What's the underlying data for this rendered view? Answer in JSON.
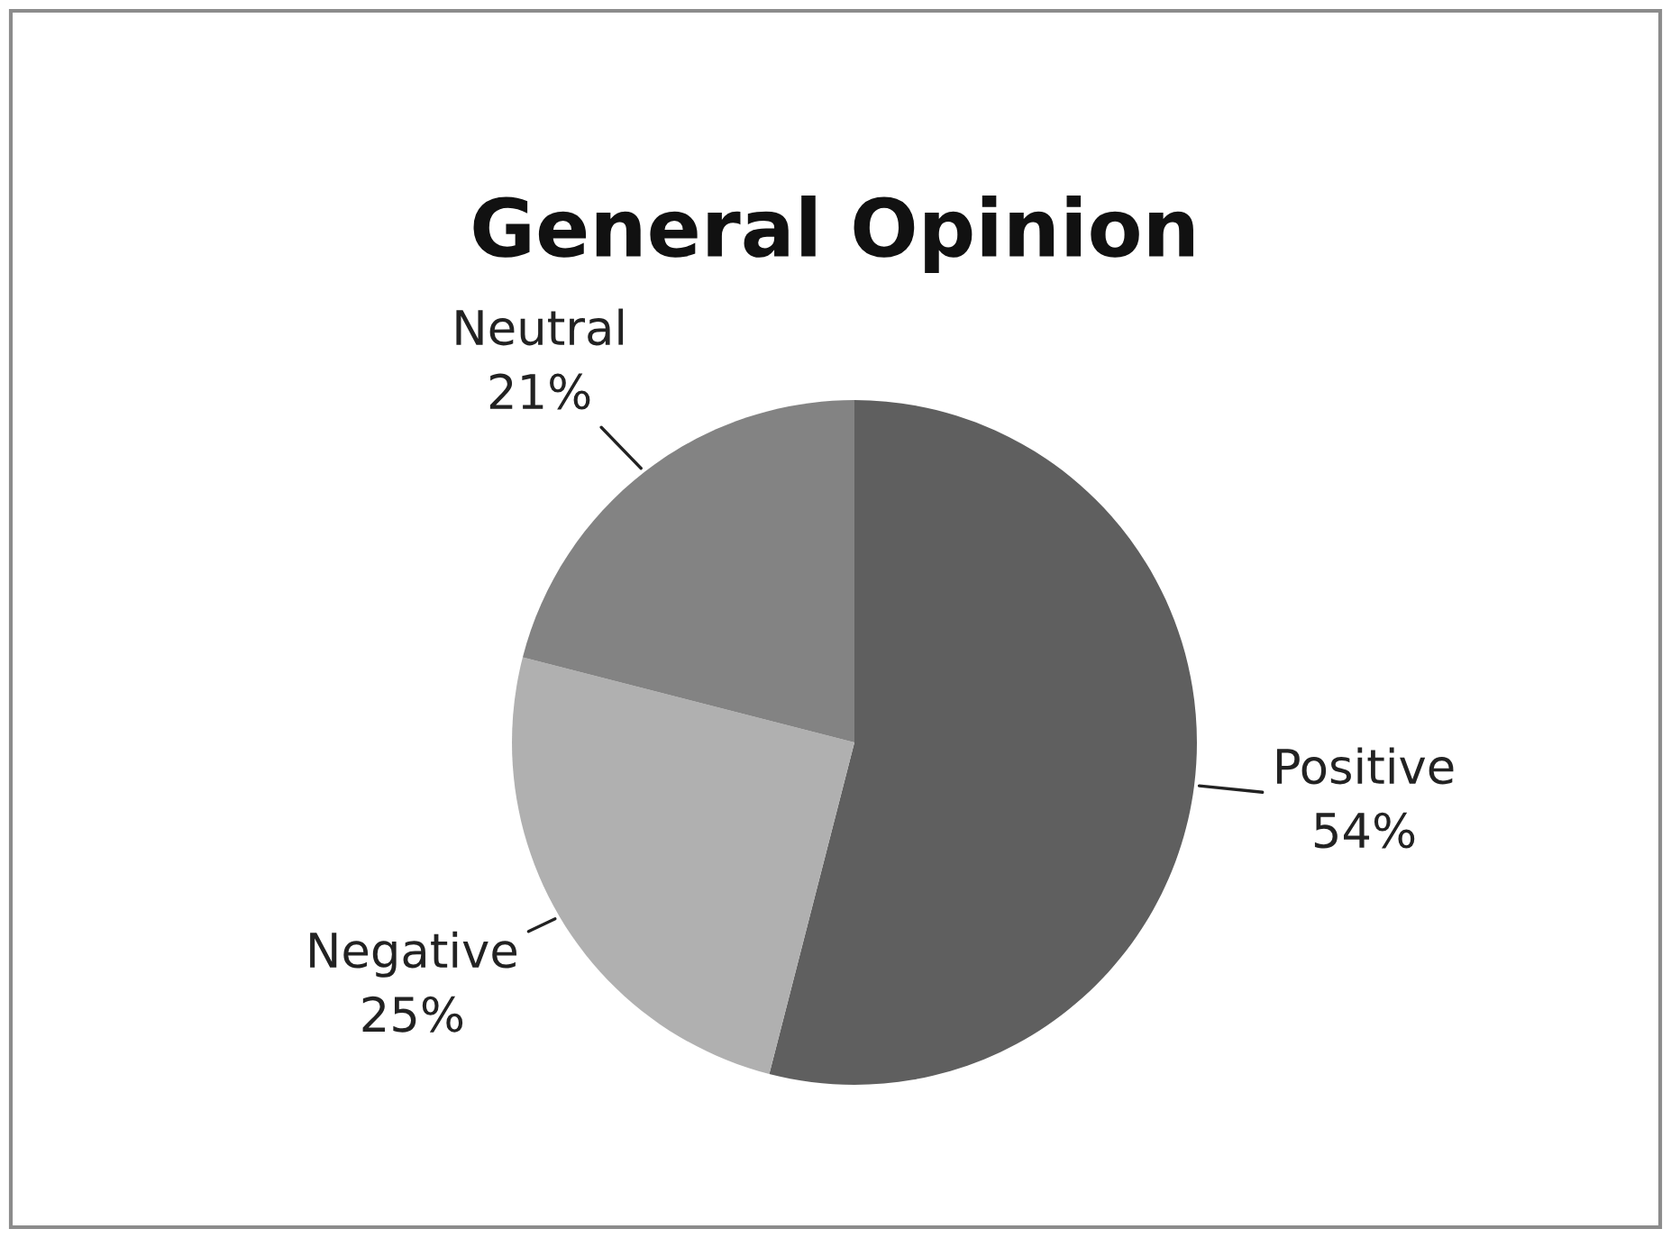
{
  "chart_data": {
    "type": "pie",
    "title": "General Opinion",
    "categories": [
      "Positive",
      "Negative",
      "Neutral"
    ],
    "values": [
      54,
      25,
      21
    ],
    "colors": [
      "#5f5f5f",
      "#b0b0b0",
      "#838383"
    ],
    "value_labels": [
      "54%",
      "25%",
      "21%"
    ],
    "legend": false
  }
}
